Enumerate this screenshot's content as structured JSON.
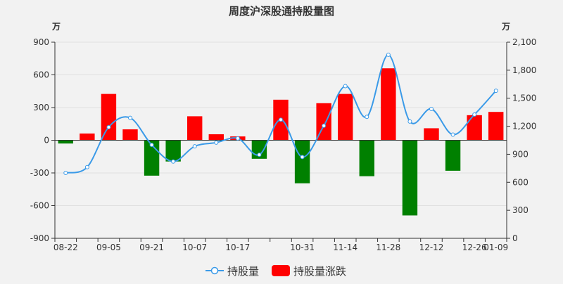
{
  "chart_data": {
    "type": "bar+line",
    "title": "周度沪深股通持股量图",
    "left_unit": "万",
    "right_unit": "万",
    "x_tick_labels": [
      "08-22",
      "09-05",
      "09-21",
      "10-07",
      "10-17",
      "10-31",
      "11-14",
      "11-28",
      "12-12",
      "12-26",
      "01-09"
    ],
    "left_axis": {
      "min": -900,
      "max": 900,
      "ticks": [
        -900,
        -600,
        -300,
        0,
        300,
        600,
        900
      ],
      "tick_labels": [
        "-900",
        "-600",
        "-300",
        "0",
        "300",
        "600",
        "900"
      ]
    },
    "right_axis": {
      "min": 0,
      "max": 2100,
      "ticks": [
        0,
        300,
        600,
        900,
        1200,
        1500,
        1800,
        2100
      ],
      "tick_labels": [
        "0",
        "300",
        "600",
        "900",
        "1,200",
        "1,500",
        "1,800",
        "2,100"
      ]
    },
    "series": [
      {
        "name": "持股量",
        "type": "line",
        "axis": "right",
        "color": "#3a9ae8",
        "values": [
          700,
          762,
          1190,
          1290,
          1000,
          822,
          985,
          1025,
          1070,
          895,
          1270,
          870,
          1205,
          1630,
          1300,
          1965,
          1250,
          1385,
          1110,
          1325,
          1580
        ]
      },
      {
        "name": "持股量涨跌",
        "type": "bar",
        "axis": "left",
        "positive_color": "#ff0000",
        "negative_color": "#008000",
        "values": [
          -30,
          62,
          425,
          100,
          -325,
          -195,
          220,
          55,
          35,
          -170,
          372,
          -395,
          340,
          425,
          -330,
          660,
          -690,
          110,
          -280,
          230,
          260
        ]
      }
    ],
    "legend": {
      "position": "bottom",
      "items": [
        "持股量",
        "持股量涨跌"
      ]
    }
  }
}
